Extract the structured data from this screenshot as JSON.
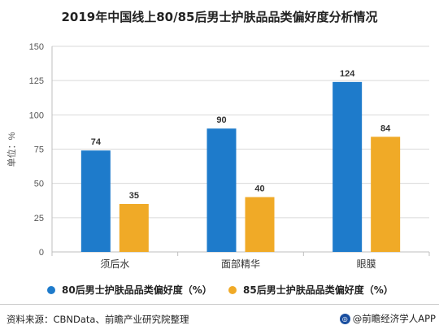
{
  "title": "2019年中国线上80/85后男士护肤品品类偏好度分析情况",
  "source": "资料来源：CBNData、前瞻产业研究院整理",
  "brand": "@前瞻经济学人APP",
  "colors": {
    "series1": "#1e7bcb",
    "series2": "#f0aa27",
    "axis": "#bfbfbf",
    "grid": "#d9d9d9"
  },
  "chart_data": {
    "type": "bar",
    "title": "2019年中国线上80/85后男士护肤品品类偏好度分析情况",
    "categories": [
      "须后水",
      "面部精华",
      "眼膜"
    ],
    "series": [
      {
        "name": "80后男士护肤品品类偏好度（%）",
        "values": [
          74,
          90,
          124
        ]
      },
      {
        "name": "85后男士护肤品品类偏好度（%）",
        "values": [
          35,
          40,
          84
        ]
      }
    ],
    "ylabel": "单位：%",
    "ylim": [
      0,
      150
    ],
    "yticks": [
      0,
      25,
      50,
      75,
      100,
      125,
      150
    ],
    "grid": true,
    "data_labels": true,
    "legend_position": "bottom"
  }
}
